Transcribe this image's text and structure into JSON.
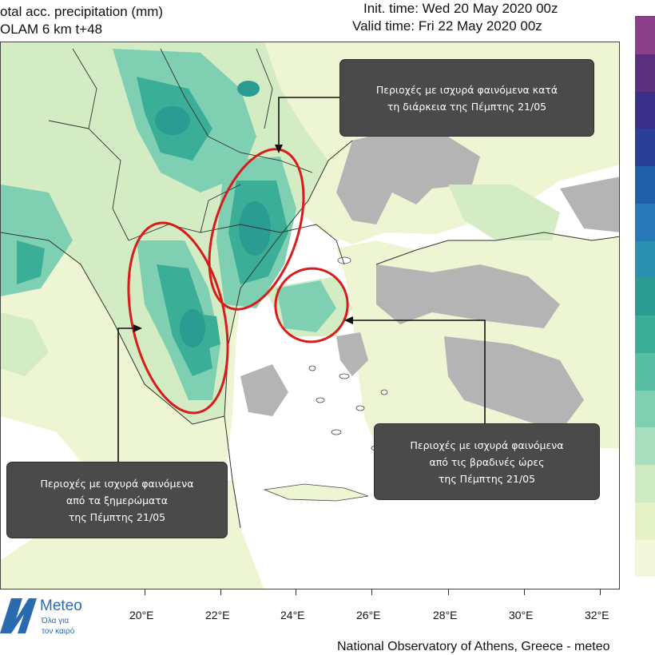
{
  "header": {
    "title_line1": "otal acc. precipitation (mm)",
    "title_line2": "OLAM 6 km t+48",
    "init_time": "Init. time: Wed 20 May 2020 00z",
    "valid_time": "Valid time: Fri 22 May 2020 00z"
  },
  "callouts": {
    "north": {
      "line1": "Περιοχές με ισχυρά φαινόμενα  κατά",
      "line2": "τη διάρκεια  της Πέμπτης 21/05"
    },
    "west": {
      "line1": "Περιοχές με ισχυρά φαινόμενα",
      "line2": "από τα ξημερώματα",
      "line3": "της Πέμπτης 21/05"
    },
    "east": {
      "line1": "Περιοχές με ισχυρά φαινόμενα",
      "line2": "από τις βραδινές ώρες",
      "line3": "της Πέμπτης 21/05"
    }
  },
  "longitude_labels": [
    "20°E",
    "22°E",
    "24°E",
    "26°E",
    "28°E",
    "30°E",
    "32°E"
  ],
  "colorbar": [
    "#f3f8da",
    "#e4f2c6",
    "#cdeac0",
    "#a9dfbf",
    "#7fcfb2",
    "#59bfa3",
    "#3aae97",
    "#2a9c91",
    "#2b8fb0",
    "#2778b8",
    "#1f5fa8",
    "#2a3f98",
    "#3a2f88",
    "#5a2f7e",
    "#8a3f88"
  ],
  "logo": {
    "name": "Meteo",
    "tagline_1": "Όλα για",
    "tagline_2": "τον καιρό"
  },
  "footer": "National Observatory of Athens, Greece - meteo",
  "colors": {
    "sea": "#ffffff",
    "land_light": "#eef5d2",
    "rain_light": "#d3ecc4",
    "rain_mid": "#7fcfb2",
    "rain_heavy": "#3aae97",
    "rain_core": "#2a9c91",
    "no_data_grey": "#b4b4b4",
    "highlight_red": "#d81c1c",
    "callout_bg": "#4a4a4a"
  }
}
